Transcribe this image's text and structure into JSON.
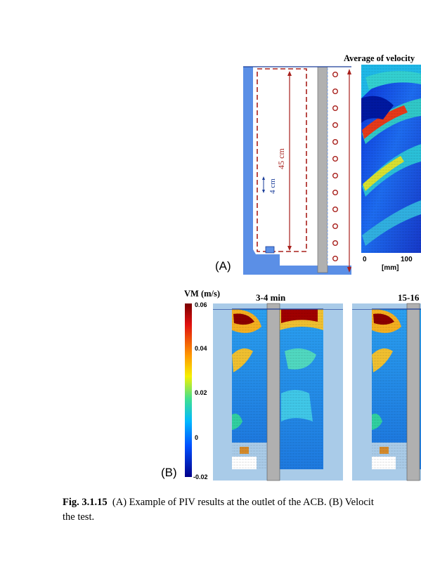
{
  "panel_a": {
    "label": "(A)",
    "title": "Average of velocity",
    "dim_height": "45 cm",
    "dim_gap": "4 cm",
    "axis_ticks": [
      "0",
      "100"
    ],
    "axis_unit": "[mm]"
  },
  "panel_b": {
    "label": "(B)",
    "colorbar_title": "VM (m/s)",
    "colorbar_ticks": [
      "0.06",
      "0.04",
      "0.02",
      "0",
      "-0.02"
    ],
    "time_labels": [
      "3-4 min",
      "15-16"
    ]
  },
  "caption": {
    "number": "Fig. 3.1.15",
    "line1": "(A) Example of PIV results at the outlet of the ACB. (B) Velocit",
    "line2": "the test."
  },
  "colors": {
    "water_blue": "#5b8fe6",
    "dash_red": "#a8201c",
    "panel_light_blue": "#a9cbe8",
    "cylinder_gray": "#b0b0b0",
    "tan": "#d58a2a"
  }
}
